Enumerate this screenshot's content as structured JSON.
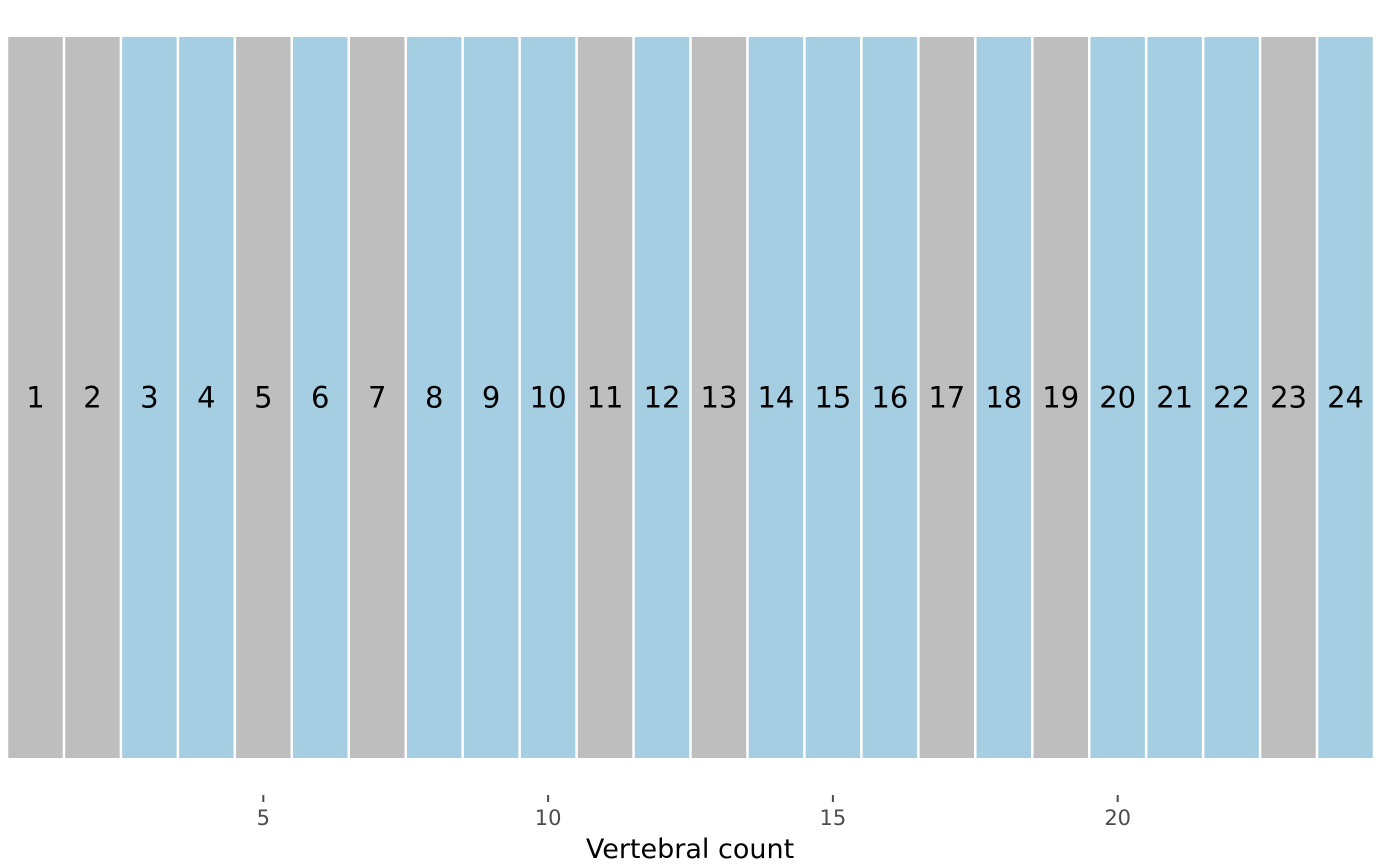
{
  "chart_data": {
    "type": "bar",
    "title": "",
    "xlabel": "Vertebral count",
    "ylabel": "",
    "xlim": [
      0.5,
      24.5
    ],
    "x_ticks": [
      5,
      10,
      15,
      20
    ],
    "grid": false,
    "legend": "none",
    "categories": [
      "1",
      "2",
      "3",
      "4",
      "5",
      "6",
      "7",
      "8",
      "9",
      "10",
      "11",
      "12",
      "13",
      "14",
      "15",
      "16",
      "17",
      "18",
      "19",
      "20",
      "21",
      "22",
      "23",
      "24"
    ],
    "segments": [
      {
        "position": 1,
        "label": "1",
        "color": "#bebebe"
      },
      {
        "position": 2,
        "label": "2",
        "color": "#bebebe"
      },
      {
        "position": 3,
        "label": "3",
        "color": "#a6cee3"
      },
      {
        "position": 4,
        "label": "4",
        "color": "#a6cee3"
      },
      {
        "position": 5,
        "label": "5",
        "color": "#bebebe"
      },
      {
        "position": 6,
        "label": "6",
        "color": "#a6cee3"
      },
      {
        "position": 7,
        "label": "7",
        "color": "#bebebe"
      },
      {
        "position": 8,
        "label": "8",
        "color": "#a6cee3"
      },
      {
        "position": 9,
        "label": "9",
        "color": "#a6cee3"
      },
      {
        "position": 10,
        "label": "10",
        "color": "#a6cee3"
      },
      {
        "position": 11,
        "label": "11",
        "color": "#bebebe"
      },
      {
        "position": 12,
        "label": "12",
        "color": "#a6cee3"
      },
      {
        "position": 13,
        "label": "13",
        "color": "#bebebe"
      },
      {
        "position": 14,
        "label": "14",
        "color": "#a6cee3"
      },
      {
        "position": 15,
        "label": "15",
        "color": "#a6cee3"
      },
      {
        "position": 16,
        "label": "16",
        "color": "#a6cee3"
      },
      {
        "position": 17,
        "label": "17",
        "color": "#bebebe"
      },
      {
        "position": 18,
        "label": "18",
        "color": "#a6cee3"
      },
      {
        "position": 19,
        "label": "19",
        "color": "#bebebe"
      },
      {
        "position": 20,
        "label": "20",
        "color": "#a6cee3"
      },
      {
        "position": 21,
        "label": "21",
        "color": "#a6cee3"
      },
      {
        "position": 22,
        "label": "22",
        "color": "#a6cee3"
      },
      {
        "position": 23,
        "label": "23",
        "color": "#bebebe"
      },
      {
        "position": 24,
        "label": "24",
        "color": "#a6cee3"
      }
    ],
    "colors": {
      "gray": "#bebebe",
      "blue": "#a6cee3",
      "separator": "#ffffff",
      "tick": "#4d4d4d"
    }
  }
}
